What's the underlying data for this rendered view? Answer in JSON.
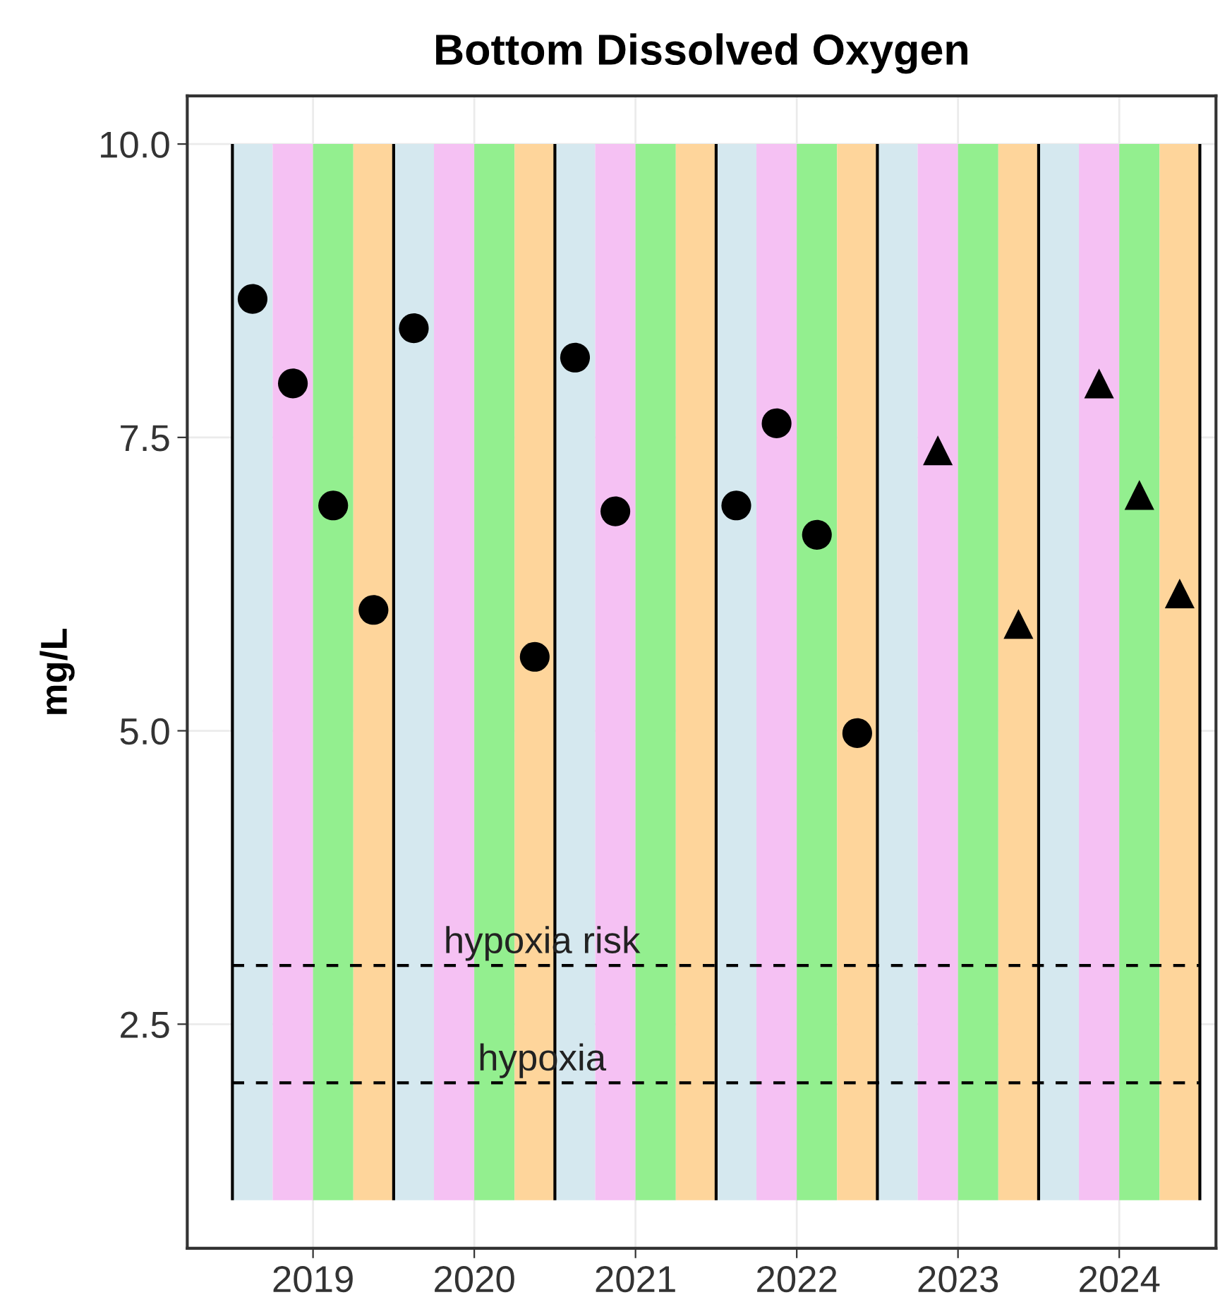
{
  "chart_data": {
    "type": "scatter",
    "title": "Bottom Dissolved Oxygen",
    "ylabel": "mg/L",
    "series": [
      {
        "marker": "circle",
        "color": "#000000",
        "x": [
          2018.625,
          2018.875,
          2019.125,
          2019.375,
          2019.625,
          2020.375,
          2020.625,
          2020.875,
          2021.625,
          2021.875,
          2022.125,
          2022.375
        ],
        "values": [
          8.68,
          7.96,
          6.92,
          6.03,
          8.43,
          5.63,
          8.18,
          6.87,
          6.92,
          7.62,
          6.67,
          4.98
        ]
      },
      {
        "marker": "triangle",
        "color": "#000000",
        "x": [
          2022.875,
          2023.375,
          2023.875,
          2024.125,
          2024.375
        ],
        "values": [
          7.39,
          5.91,
          7.96,
          7.01,
          6.17
        ]
      }
    ],
    "xlim": [
      2018.22,
      2024.6
    ],
    "xticks": [
      2019,
      2020,
      2021,
      2022,
      2023,
      2024
    ],
    "ylim": [
      0.59,
      10.41
    ],
    "yticks": [
      {
        "value": 2.5,
        "label": "2.5"
      },
      {
        "value": 5,
        "label": "5.0"
      },
      {
        "value": 7.5,
        "label": "7.5"
      },
      {
        "value": 10,
        "label": "10.0"
      }
    ],
    "grid": true,
    "ref_lines": [
      {
        "axis": "y",
        "value": 3,
        "label": "hypoxia risk",
        "color": "#000000",
        "line_style": "dashed"
      },
      {
        "axis": "y",
        "value": 2,
        "label": "hypoxia",
        "color": "#000000",
        "line_style": "dashed"
      },
      {
        "axis": "x",
        "value": 2018.5,
        "color": "#000000"
      },
      {
        "axis": "x",
        "value": 2019.5,
        "color": "#000000"
      },
      {
        "axis": "x",
        "value": 2020.5,
        "color": "#000000"
      },
      {
        "axis": "x",
        "value": 2021.5,
        "color": "#000000"
      },
      {
        "axis": "x",
        "value": 2022.5,
        "color": "#000000"
      },
      {
        "axis": "x",
        "value": 2023.5,
        "color": "#000000"
      },
      {
        "axis": "x",
        "value": 2024.5,
        "color": "#000000"
      }
    ],
    "bands": [
      {
        "axis": "x",
        "from": 2018.5,
        "to": 2018.75,
        "color": "#d5e8ef"
      },
      {
        "axis": "x",
        "from": 2018.75,
        "to": 2019.0,
        "color": "#f5c1f3"
      },
      {
        "axis": "x",
        "from": 2019.0,
        "to": 2019.25,
        "color": "#93ef8f"
      },
      {
        "axis": "x",
        "from": 2019.25,
        "to": 2019.5,
        "color": "#fed59b"
      },
      {
        "axis": "x",
        "from": 2019.5,
        "to": 2019.75,
        "color": "#d5e8ef"
      },
      {
        "axis": "x",
        "from": 2019.75,
        "to": 2020.0,
        "color": "#f5c1f3"
      },
      {
        "axis": "x",
        "from": 2020.0,
        "to": 2020.25,
        "color": "#93ef8f"
      },
      {
        "axis": "x",
        "from": 2020.25,
        "to": 2020.5,
        "color": "#fed59b"
      },
      {
        "axis": "x",
        "from": 2020.5,
        "to": 2020.75,
        "color": "#d5e8ef"
      },
      {
        "axis": "x",
        "from": 2020.75,
        "to": 2021.0,
        "color": "#f5c1f3"
      },
      {
        "axis": "x",
        "from": 2021.0,
        "to": 2021.25,
        "color": "#93ef8f"
      },
      {
        "axis": "x",
        "from": 2021.25,
        "to": 2021.5,
        "color": "#fed59b"
      },
      {
        "axis": "x",
        "from": 2021.5,
        "to": 2021.75,
        "color": "#d5e8ef"
      },
      {
        "axis": "x",
        "from": 2021.75,
        "to": 2022.0,
        "color": "#f5c1f3"
      },
      {
        "axis": "x",
        "from": 2022.0,
        "to": 2022.25,
        "color": "#93ef8f"
      },
      {
        "axis": "x",
        "from": 2022.25,
        "to": 2022.5,
        "color": "#fed59b"
      },
      {
        "axis": "x",
        "from": 2022.5,
        "to": 2022.75,
        "color": "#d5e8ef"
      },
      {
        "axis": "x",
        "from": 2022.75,
        "to": 2023.0,
        "color": "#f5c1f3"
      },
      {
        "axis": "x",
        "from": 2023.0,
        "to": 2023.25,
        "color": "#93ef8f"
      },
      {
        "axis": "x",
        "from": 2023.25,
        "to": 2023.5,
        "color": "#fed59b"
      },
      {
        "axis": "x",
        "from": 2023.5,
        "to": 2023.75,
        "color": "#d5e8ef"
      },
      {
        "axis": "x",
        "from": 2023.75,
        "to": 2024.0,
        "color": "#f5c1f3"
      },
      {
        "axis": "x",
        "from": 2024.0,
        "to": 2024.25,
        "color": "#93ef8f"
      },
      {
        "axis": "x",
        "from": 2024.25,
        "to": 2024.5,
        "color": "#fed59b"
      }
    ]
  }
}
